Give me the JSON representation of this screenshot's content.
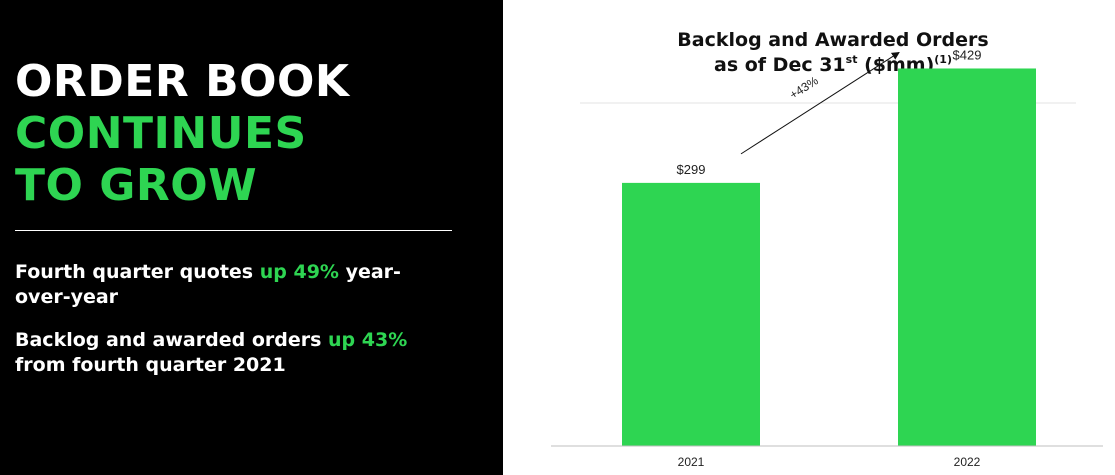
{
  "left": {
    "headline": [
      "ORDER BOOK",
      "CONTINUES",
      "TO GROW"
    ],
    "bullets": [
      {
        "pre": "Fourth quarter quotes ",
        "highlight": "up 49%",
        "post": " year-over-year"
      },
      {
        "pre": "Backlog and awarded orders ",
        "highlight": "up 43%",
        "post": " from fourth quarter 2021"
      }
    ]
  },
  "colors": {
    "accent_green": "#2ed552",
    "bar_green": "#2ed552",
    "background_left": "#000000"
  },
  "chart_data": {
    "type": "bar",
    "title_line1": "Backlog and Awarded Orders",
    "title_line2_pre": "as of Dec 31",
    "title_line2_sup": "st",
    "title_line2_mid": " ($mm)",
    "title_line2_note": "(1)",
    "categories": [
      "2021",
      "2022"
    ],
    "values": [
      299,
      429
    ],
    "data_labels": [
      "$299",
      "$429"
    ],
    "annotation": "+43%",
    "ylim": [
      0,
      500
    ]
  }
}
